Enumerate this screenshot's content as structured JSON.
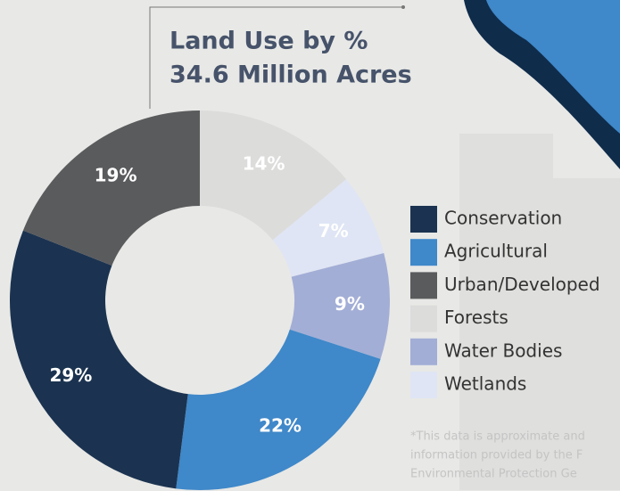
{
  "chart_data": {
    "type": "donut",
    "title": [
      "Land Use by %",
      "34.6 Million Acres"
    ],
    "categories": [
      "Forests",
      "Wetlands",
      "Water Bodies",
      "Agricultural",
      "Conservation",
      "Urban/Developed"
    ],
    "values": [
      14,
      7,
      9,
      22,
      29,
      19
    ],
    "value_labels": [
      "14%",
      "7%",
      "9%",
      "22%",
      "29%",
      "19%"
    ],
    "colors": [
      "#dcdcdb",
      "#dfe5f4",
      "#a3aed6",
      "#3f88c9",
      "#1b3350",
      "#5a5b5d"
    ],
    "footnote": [
      "*This data is approximate and",
      "information provided by the F",
      "Environmental Protection Ge"
    ]
  }
}
